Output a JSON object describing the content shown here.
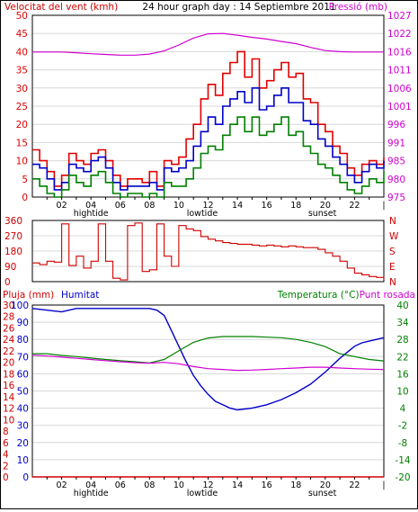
{
  "colors": {
    "wind_max": "#e00000",
    "wind_avg": "#0000c8",
    "wind_min": "#008000",
    "pressure": "#d000d0",
    "direction": "#d00000",
    "humidity": "#0000c8",
    "temperature": "#008000",
    "dewpoint": "#d000d0",
    "rain": "#d00000"
  },
  "chart_data": [
    {
      "type": "line",
      "title": "24 hour graph day : 14 Septiembre 2011",
      "y_left_label": "Velocitat del vent (kmh)",
      "y_right_label": "Pressió (mb)",
      "ylim_left": [
        0,
        50
      ],
      "ylim_right": [
        975,
        1027
      ],
      "left_ticks": [
        "0",
        "5",
        "10",
        "15",
        "20",
        "25",
        "30",
        "35",
        "40",
        "45",
        "50"
      ],
      "right_ticks": [
        "975",
        "980",
        "985",
        "991",
        "996",
        "1001",
        "1006",
        "1011",
        "1016",
        "1022",
        "1027"
      ],
      "x_ticks": [
        "02",
        "04",
        "06",
        "08",
        "10",
        "12",
        "14",
        "16",
        "18",
        "20",
        "22"
      ],
      "x_end_marker": "|",
      "x_annotations": [
        {
          "label": "hightide",
          "hour": 4.0
        },
        {
          "label": "lowtide",
          "hour": 11.6
        },
        {
          "label": "sunset",
          "hour": 19.8
        }
      ],
      "series": [
        {
          "name": "Velocitat del vent (kmh)",
          "axis": "left",
          "x": [
            0,
            0.5,
            1,
            1.5,
            2,
            2.5,
            3,
            3.5,
            4,
            4.5,
            5,
            5.5,
            6,
            6.5,
            7,
            7.5,
            8,
            8.5,
            9,
            9.5,
            10,
            10.5,
            11,
            11.5,
            12,
            12.5,
            13,
            13.5,
            14,
            14.5,
            15,
            15.5,
            16,
            16.5,
            17,
            17.5,
            18,
            18.5,
            19,
            19.5,
            20,
            20.5,
            21,
            21.5,
            22,
            22.5,
            23,
            23.5,
            24
          ],
          "values": [
            13,
            10,
            7,
            3,
            6,
            12,
            10,
            9,
            12,
            13,
            10,
            6,
            3,
            5,
            5,
            4,
            7,
            3,
            10,
            9,
            11,
            16,
            20,
            27,
            31,
            28,
            34,
            37,
            40,
            33,
            38,
            30,
            32,
            35,
            37,
            33,
            34,
            27,
            26,
            20,
            18,
            14,
            12,
            8,
            6,
            9,
            10,
            9,
            11
          ]
        },
        {
          "name": "Average wind",
          "axis": "left",
          "x": [
            0,
            0.5,
            1,
            1.5,
            2,
            2.5,
            3,
            3.5,
            4,
            4.5,
            5,
            5.5,
            6,
            6.5,
            7,
            7.5,
            8,
            8.5,
            9,
            9.5,
            10,
            10.5,
            11,
            11.5,
            12,
            12.5,
            13,
            13.5,
            14,
            14.5,
            15,
            15.5,
            16,
            16.5,
            17,
            17.5,
            18,
            18.5,
            19,
            19.5,
            20,
            20.5,
            21,
            21.5,
            22,
            22.5,
            23,
            23.5,
            24
          ],
          "values": [
            9,
            8,
            5,
            2,
            4,
            9,
            8,
            7,
            10,
            11,
            8,
            4,
            2,
            3,
            3,
            3,
            4,
            2,
            8,
            7,
            8,
            10,
            14,
            18,
            22,
            20,
            25,
            27,
            29,
            26,
            30,
            24,
            25,
            28,
            30,
            26,
            26,
            21,
            20,
            16,
            14,
            11,
            9,
            6,
            4,
            7,
            9,
            8,
            10
          ]
        },
        {
          "name": "Minimum wind",
          "axis": "left",
          "x": [
            0,
            0.5,
            1,
            1.5,
            2,
            2.5,
            3,
            3.5,
            4,
            4.5,
            5,
            5.5,
            6,
            6.5,
            7,
            7.5,
            8,
            8.5,
            9,
            9.5,
            10,
            10.5,
            11,
            11.5,
            12,
            12.5,
            13,
            13.5,
            14,
            14.5,
            15,
            15.5,
            16,
            16.5,
            17,
            17.5,
            18,
            18.5,
            19,
            19.5,
            20,
            20.5,
            21,
            21.5,
            22,
            22.5,
            23,
            23.5,
            24
          ],
          "values": [
            5,
            3,
            1,
            0,
            2,
            6,
            4,
            3,
            6,
            7,
            4,
            1,
            0,
            1,
            1,
            0,
            1,
            0,
            4,
            3,
            3,
            5,
            8,
            12,
            14,
            13,
            17,
            20,
            22,
            18,
            22,
            17,
            18,
            20,
            22,
            17,
            18,
            14,
            12,
            9,
            8,
            6,
            4,
            2,
            1,
            3,
            5,
            4,
            7
          ]
        },
        {
          "name": "Pressió (mb)",
          "axis": "right",
          "x": [
            0,
            1,
            2,
            3,
            4,
            5,
            6,
            7,
            8,
            9,
            10,
            11,
            12,
            13,
            14,
            15,
            16,
            17,
            18,
            19,
            20,
            21,
            22,
            23,
            24
          ],
          "values": [
            1016.5,
            1016.5,
            1016.5,
            1016.3,
            1016.0,
            1015.8,
            1015.6,
            1015.6,
            1015.9,
            1016.8,
            1018.5,
            1020.5,
            1021.7,
            1021.8,
            1021.3,
            1020.7,
            1020.2,
            1019.5,
            1018.9,
            1017.8,
            1016.9,
            1016.6,
            1016.5,
            1016.5,
            1016.5
          ]
        }
      ]
    },
    {
      "type": "line",
      "ylim": [
        0,
        360
      ],
      "left_ticks": [
        "0",
        "90",
        "180",
        "270",
        "360"
      ],
      "right_ticks": [
        "N",
        "E",
        "S",
        "W",
        "N"
      ],
      "series": [
        {
          "name": "Wind direction",
          "x": [
            0,
            0.5,
            1,
            1.5,
            2,
            2.5,
            3,
            3.5,
            4,
            4.5,
            5,
            5.5,
            6,
            6.5,
            7,
            7.5,
            8,
            8.5,
            9,
            9.5,
            10,
            10.5,
            11,
            11.5,
            12,
            12.5,
            13,
            13.5,
            14,
            14.5,
            15,
            15.5,
            16,
            16.5,
            17,
            17.5,
            18,
            18.5,
            19,
            19.5,
            20,
            20.5,
            21,
            21.5,
            22,
            22.5,
            23,
            23.5,
            24
          ],
          "values": [
            110,
            100,
            120,
            115,
            340,
            95,
            150,
            80,
            120,
            340,
            120,
            20,
            10,
            330,
            345,
            60,
            70,
            340,
            150,
            90,
            330,
            310,
            300,
            265,
            250,
            240,
            230,
            225,
            220,
            220,
            215,
            210,
            215,
            210,
            205,
            210,
            205,
            200,
            200,
            190,
            170,
            150,
            120,
            80,
            50,
            40,
            30,
            25,
            15
          ]
        }
      ]
    },
    {
      "type": "line",
      "y_left_labels": [
        "Pluja (mm)",
        "Humitat"
      ],
      "y_right_labels": [
        "Temperatura (°C)",
        "Punt rosada"
      ],
      "ylim_rain": [
        0,
        30
      ],
      "ylim_humidity": [
        0,
        100
      ],
      "ylim_right": [
        -20,
        40
      ],
      "rain_ticks": [
        "0",
        "2",
        "4",
        "6",
        "8",
        "10",
        "12",
        "14",
        "16",
        "18",
        "20",
        "22",
        "24",
        "26",
        "28",
        "30"
      ],
      "humidity_ticks": [
        "0",
        "10",
        "20",
        "30",
        "40",
        "50",
        "60",
        "70",
        "80",
        "90",
        "100"
      ],
      "right_ticks": [
        "-20",
        "-14",
        "-8",
        "-2",
        "4",
        "10",
        "16",
        "22",
        "28",
        "34",
        "40"
      ],
      "x_ticks": [
        "02",
        "04",
        "06",
        "08",
        "10",
        "12",
        "14",
        "16",
        "18",
        "20",
        "22"
      ],
      "x_end_marker": "|",
      "x_annotations": [
        {
          "label": "hightide",
          "hour": 4.0
        },
        {
          "label": "lowtide",
          "hour": 11.6
        },
        {
          "label": "sunset",
          "hour": 19.8
        }
      ],
      "series": [
        {
          "name": "Humitat",
          "axis": "humidity",
          "x": [
            0,
            1,
            2,
            3,
            4,
            5,
            6,
            7,
            8,
            8.5,
            9,
            9.5,
            10,
            10.5,
            11,
            11.5,
            12,
            12.5,
            13,
            13.5,
            14,
            15,
            16,
            17,
            18,
            19,
            20,
            21,
            22,
            22.5,
            23,
            23.5,
            24
          ],
          "values": [
            98,
            97,
            96,
            98,
            98,
            98,
            98,
            98,
            98,
            97,
            94,
            85,
            76,
            67,
            59,
            53,
            48,
            44,
            42,
            40,
            39,
            40,
            42,
            45,
            49,
            54,
            61,
            69,
            76,
            78,
            79,
            80,
            81
          ]
        },
        {
          "name": "Temperatura (°C)",
          "axis": "right",
          "x": [
            0,
            1,
            2,
            3,
            4,
            5,
            6,
            7,
            8,
            9,
            10,
            11,
            12,
            13,
            14,
            15,
            16,
            17,
            18,
            19,
            20,
            21,
            22,
            23,
            24
          ],
          "values": [
            23,
            23,
            22.4,
            22,
            21.5,
            21,
            20.6,
            20.2,
            19.8,
            21,
            24,
            27,
            28.5,
            29,
            29,
            29,
            28.8,
            28.6,
            28,
            27,
            25.5,
            23,
            22,
            21,
            20.5
          ]
        },
        {
          "name": "Punt rosada",
          "axis": "right",
          "x": [
            0,
            1,
            2,
            3,
            4,
            5,
            6,
            7,
            8,
            9,
            10,
            11,
            12,
            13,
            14,
            15,
            16,
            17,
            18,
            19,
            20,
            21,
            22,
            23,
            24
          ],
          "values": [
            22.5,
            22.2,
            21.8,
            21.4,
            21,
            20.6,
            20.2,
            19.9,
            19.7,
            20,
            19.5,
            18.5,
            17.8,
            17.5,
            17.2,
            17.3,
            17.5,
            17.8,
            18,
            18.3,
            18.3,
            18,
            17.8,
            17.6,
            17.5
          ]
        },
        {
          "name": "Pluja (mm)",
          "axis": "rain",
          "x": [
            0,
            24
          ],
          "values": [
            0,
            0
          ]
        }
      ]
    }
  ]
}
